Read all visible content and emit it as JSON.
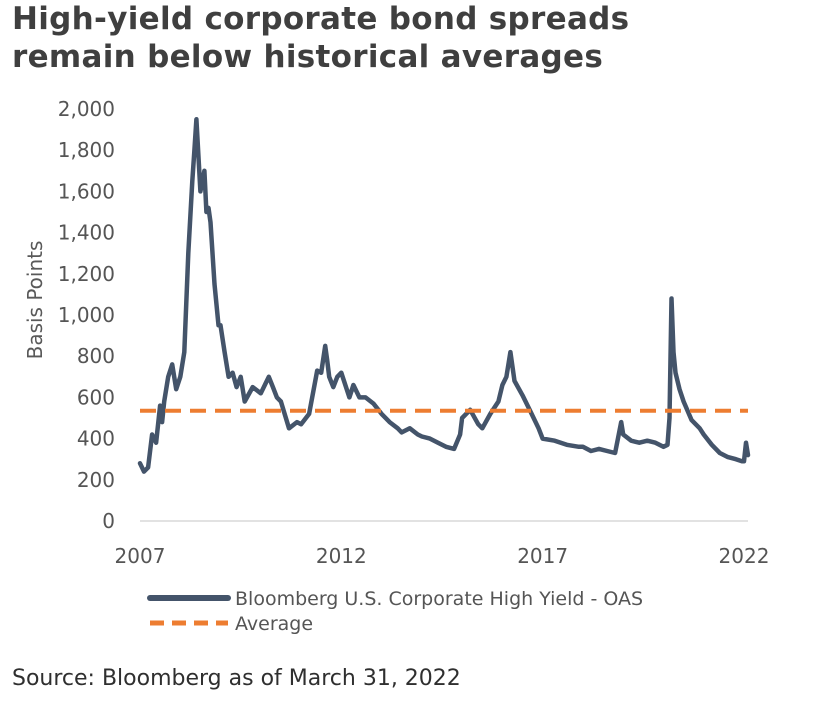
{
  "title": {
    "line1": "High-yield corporate bond spreads",
    "line2": "remain below historical averages"
  },
  "source": "Source: Bloomberg as of March 31, 2022",
  "colors": {
    "series": "#44546a",
    "average": "#ed7d31",
    "text": "#555555"
  },
  "chart_data": {
    "type": "line",
    "title": "High-yield corporate bond spreads remain below historical averages",
    "xlabel": "",
    "ylabel": "Basis Points",
    "xlim": [
      2007,
      2022.1
    ],
    "ylim": [
      0,
      2000
    ],
    "y_ticks": [
      0,
      200,
      400,
      600,
      800,
      1000,
      1200,
      1400,
      1600,
      1800,
      2000
    ],
    "y_tick_labels": [
      "0",
      "200",
      "400",
      "600",
      "800",
      "1,000",
      "1,200",
      "1,400",
      "1,600",
      "1,800",
      "2,000"
    ],
    "x_ticks": [
      2007,
      2012,
      2017,
      2022
    ],
    "x_tick_labels": [
      "2007",
      "2012",
      "2017",
      "2022"
    ],
    "grid": false,
    "legend_position": "bottom",
    "series": [
      {
        "name": "Bloomberg U.S. Corporate High Yield - OAS",
        "style": "solid",
        "x": [
          2007.0,
          2007.1,
          2007.2,
          2007.3,
          2007.4,
          2007.5,
          2007.55,
          2007.6,
          2007.7,
          2007.8,
          2007.9,
          2008.0,
          2008.1,
          2008.2,
          2008.3,
          2008.35,
          2008.4,
          2008.5,
          2008.6,
          2008.65,
          2008.7,
          2008.75,
          2008.8,
          2008.85,
          2008.9,
          2008.95,
          2009.0,
          2009.1,
          2009.2,
          2009.3,
          2009.4,
          2009.5,
          2009.6,
          2009.8,
          2010.0,
          2010.2,
          2010.3,
          2010.4,
          2010.5,
          2010.7,
          2010.9,
          2011.0,
          2011.2,
          2011.4,
          2011.5,
          2011.6,
          2011.65,
          2011.7,
          2011.8,
          2011.9,
          2012.0,
          2012.2,
          2012.3,
          2012.45,
          2012.6,
          2012.8,
          2013.0,
          2013.2,
          2013.4,
          2013.5,
          2013.7,
          2013.9,
          2014.0,
          2014.2,
          2014.4,
          2014.6,
          2014.8,
          2014.95,
          2015.0,
          2015.2,
          2015.4,
          2015.5,
          2015.7,
          2015.9,
          2016.0,
          2016.1,
          2016.2,
          2016.3,
          2016.5,
          2016.7,
          2016.9,
          2017.0,
          2017.3,
          2017.6,
          2017.9,
          2018.0,
          2018.2,
          2018.4,
          2018.6,
          2018.8,
          2018.95,
          2019.0,
          2019.2,
          2019.4,
          2019.6,
          2019.8,
          2020.0,
          2020.1,
          2020.15,
          2020.2,
          2020.25,
          2020.3,
          2020.4,
          2020.5,
          2020.7,
          2020.9,
          2021.0,
          2021.2,
          2021.4,
          2021.6,
          2021.8,
          2021.95,
          2022.0,
          2022.05,
          2022.1
        ],
        "values": [
          280,
          240,
          260,
          420,
          380,
          560,
          480,
          580,
          700,
          760,
          640,
          700,
          820,
          1300,
          1650,
          1800,
          1950,
          1600,
          1700,
          1500,
          1520,
          1450,
          1300,
          1150,
          1050,
          950,
          950,
          820,
          700,
          720,
          650,
          700,
          580,
          650,
          620,
          700,
          650,
          600,
          580,
          450,
          480,
          470,
          520,
          730,
          720,
          850,
          780,
          700,
          650,
          700,
          720,
          600,
          660,
          600,
          600,
          570,
          520,
          480,
          450,
          430,
          450,
          420,
          410,
          400,
          380,
          360,
          350,
          420,
          500,
          540,
          470,
          450,
          520,
          580,
          660,
          700,
          820,
          680,
          610,
          530,
          450,
          400,
          390,
          370,
          360,
          360,
          340,
          350,
          340,
          330,
          480,
          420,
          390,
          380,
          390,
          380,
          360,
          370,
          500,
          1080,
          820,
          720,
          640,
          580,
          490,
          450,
          420,
          370,
          330,
          310,
          300,
          290,
          290,
          380,
          320
        ]
      },
      {
        "name": "Average",
        "style": "dashed",
        "x": [
          2007.0,
          2022.1
        ],
        "values": [
          535,
          535
        ]
      }
    ]
  }
}
